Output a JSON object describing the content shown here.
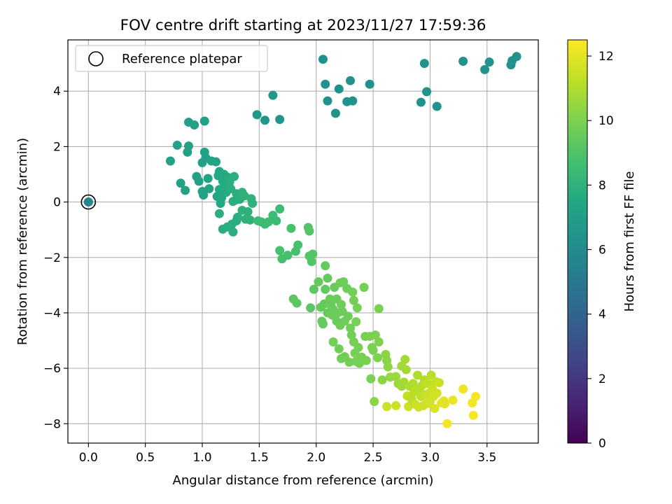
{
  "chart_data": {
    "type": "scatter",
    "title": "FOV centre drift starting at 2023/11/27 17:59:36",
    "xlabel": "Angular distance from reference (arcmin)",
    "ylabel": "Rotation from reference (arcmin)",
    "xlim": [
      -0.18,
      3.95
    ],
    "ylim": [
      -8.7,
      5.85
    ],
    "xticks": [
      0.0,
      0.5,
      1.0,
      1.5,
      2.0,
      2.5,
      3.0,
      3.5
    ],
    "xtick_labels": [
      "0.0",
      "0.5",
      "1.0",
      "1.5",
      "2.0",
      "2.5",
      "3.0",
      "3.5"
    ],
    "yticks": [
      -8,
      -6,
      -4,
      -2,
      0,
      2,
      4
    ],
    "ytick_labels": [
      "−8",
      "−6",
      "−4",
      "−2",
      "0",
      "2",
      "4"
    ],
    "grid": true,
    "legend": {
      "placement": "top-left",
      "entries": [
        "Reference platepar"
      ]
    },
    "reference_point": {
      "x": 0.0,
      "y": 0.0,
      "hours": 5.6
    },
    "colorbar": {
      "label": "Hours from first FF file",
      "range": [
        0,
        12.5
      ],
      "ticks": [
        0,
        2,
        4,
        6,
        8,
        10,
        12
      ],
      "tick_labels": [
        "0",
        "2",
        "4",
        "6",
        "8",
        "10",
        "12"
      ],
      "colormap": "viridis"
    },
    "series": [
      {
        "note_color": "viridis",
        "points": [
          [
            0.0,
            0.0,
            5.6
          ],
          [
            2.06,
            5.15,
            6.3
          ],
          [
            2.08,
            4.25,
            6.3
          ],
          [
            2.1,
            3.65,
            6.3
          ],
          [
            2.17,
            3.2,
            6.3
          ],
          [
            2.2,
            4.08,
            6.3
          ],
          [
            2.27,
            3.62,
            6.3
          ],
          [
            2.3,
            4.38,
            6.3
          ],
          [
            2.32,
            3.65,
            6.3
          ],
          [
            2.47,
            4.25,
            6.3
          ],
          [
            2.92,
            3.6,
            6.3
          ],
          [
            2.95,
            5.0,
            6.3
          ],
          [
            2.97,
            3.98,
            6.3
          ],
          [
            3.06,
            3.45,
            6.3
          ],
          [
            3.29,
            5.08,
            6.3
          ],
          [
            3.48,
            4.78,
            6.3
          ],
          [
            3.52,
            5.05,
            6.3
          ],
          [
            3.71,
            4.95,
            6.3
          ],
          [
            3.72,
            5.1,
            6.3
          ],
          [
            3.76,
            5.25,
            6.3
          ],
          [
            1.48,
            3.15,
            6.6
          ],
          [
            1.55,
            2.95,
            6.6
          ],
          [
            1.62,
            3.85,
            6.6
          ],
          [
            1.68,
            2.98,
            6.6
          ],
          [
            0.72,
            1.48,
            7.1
          ],
          [
            0.78,
            2.05,
            7.1
          ],
          [
            0.81,
            0.68,
            7.1
          ],
          [
            0.85,
            0.42,
            7.1
          ],
          [
            0.87,
            1.8,
            7.1
          ],
          [
            0.88,
            2.02,
            7.1
          ],
          [
            0.88,
            2.88,
            7.1
          ],
          [
            0.93,
            2.78,
            7.1
          ],
          [
            0.95,
            0.92,
            7.1
          ],
          [
            0.97,
            0.75,
            7.1
          ],
          [
            1.0,
            1.42,
            7.1
          ],
          [
            1.0,
            0.38,
            7.1
          ],
          [
            1.01,
            0.25,
            7.1
          ],
          [
            1.02,
            1.8,
            7.1
          ],
          [
            1.02,
            2.92,
            7.1
          ],
          [
            1.03,
            1.6,
            7.1
          ],
          [
            1.05,
            0.85,
            7.3
          ],
          [
            1.06,
            0.48,
            7.3
          ],
          [
            1.08,
            1.48,
            7.3
          ],
          [
            1.12,
            1.45,
            7.3
          ],
          [
            1.13,
            0.2,
            7.3
          ],
          [
            1.14,
            0.95,
            7.5
          ],
          [
            1.15,
            1.1,
            7.5
          ],
          [
            1.15,
            0.45,
            7.5
          ],
          [
            1.16,
            -0.05,
            7.5
          ],
          [
            1.17,
            0.15,
            7.5
          ],
          [
            1.18,
            0.75,
            7.6
          ],
          [
            1.19,
            1.0,
            7.6
          ],
          [
            1.2,
            0.55,
            7.6
          ],
          [
            1.21,
            0.35,
            7.6
          ],
          [
            1.22,
            0.9,
            7.6
          ],
          [
            1.23,
            0.6,
            7.6
          ],
          [
            1.24,
            0.72,
            7.8
          ],
          [
            1.25,
            0.48,
            7.8
          ],
          [
            1.27,
            0.02,
            7.8
          ],
          [
            1.28,
            0.92,
            7.8
          ],
          [
            1.3,
            0.3,
            7.8
          ],
          [
            1.3,
            0.08,
            7.8
          ],
          [
            1.31,
            -0.55,
            7.8
          ],
          [
            1.33,
            0.1,
            7.8
          ],
          [
            1.35,
            -0.3,
            8.0
          ],
          [
            1.35,
            0.35,
            8.0
          ],
          [
            1.37,
            0.22,
            8.0
          ],
          [
            1.38,
            -0.62,
            8.0
          ],
          [
            1.4,
            -0.35,
            8.0
          ],
          [
            1.42,
            -0.65,
            8.0
          ],
          [
            1.43,
            0.12,
            8.0
          ],
          [
            1.44,
            -0.05,
            8.0
          ],
          [
            1.15,
            -0.42,
            7.8
          ],
          [
            1.18,
            -0.98,
            7.8
          ],
          [
            1.22,
            -0.9,
            7.8
          ],
          [
            1.26,
            -0.8,
            7.8
          ],
          [
            1.27,
            -1.08,
            7.8
          ],
          [
            1.3,
            -0.68,
            7.8
          ],
          [
            1.49,
            -0.68,
            8.5
          ],
          [
            1.52,
            -0.72,
            8.5
          ],
          [
            1.55,
            -0.8,
            8.5
          ],
          [
            1.58,
            -0.72,
            8.5
          ],
          [
            1.62,
            -0.48,
            8.5
          ],
          [
            1.65,
            -0.68,
            8.5
          ],
          [
            1.68,
            -0.25,
            8.5
          ],
          [
            1.68,
            -1.75,
            8.8
          ],
          [
            1.7,
            -2.05,
            8.8
          ],
          [
            1.75,
            -1.92,
            8.8
          ],
          [
            1.78,
            -0.95,
            8.8
          ],
          [
            1.82,
            -1.78,
            8.8
          ],
          [
            1.84,
            -1.55,
            8.8
          ],
          [
            1.93,
            -0.92,
            9.1
          ],
          [
            1.94,
            -1.05,
            9.1
          ],
          [
            1.94,
            -1.95,
            9.1
          ],
          [
            1.96,
            -2.15,
            9.1
          ],
          [
            1.97,
            -1.88,
            9.1
          ],
          [
            1.98,
            -3.15,
            9.3
          ],
          [
            1.95,
            -3.82,
            9.3
          ],
          [
            1.8,
            -3.5,
            9.3
          ],
          [
            1.83,
            -3.65,
            9.3
          ],
          [
            2.02,
            -2.88,
            9.5
          ],
          [
            2.04,
            -3.8,
            9.5
          ],
          [
            2.05,
            -4.3,
            9.5
          ],
          [
            2.06,
            -4.4,
            9.5
          ],
          [
            2.07,
            -3.68,
            9.5
          ],
          [
            2.08,
            -3.15,
            9.5
          ],
          [
            2.08,
            -2.3,
            9.5
          ],
          [
            2.1,
            -4.0,
            9.5
          ],
          [
            2.1,
            -2.75,
            9.5
          ],
          [
            2.12,
            -3.5,
            9.6
          ],
          [
            2.13,
            -3.72,
            9.6
          ],
          [
            2.14,
            -4.08,
            9.6
          ],
          [
            2.15,
            -3.88,
            9.6
          ],
          [
            2.15,
            -5.05,
            9.8
          ],
          [
            2.16,
            -3.08,
            9.6
          ],
          [
            2.18,
            -3.5,
            9.6
          ],
          [
            2.18,
            -4.3,
            9.6
          ],
          [
            2.19,
            -4.0,
            9.7
          ],
          [
            2.2,
            -5.3,
            9.8
          ],
          [
            2.21,
            -2.92,
            9.7
          ],
          [
            2.21,
            -4.45,
            9.7
          ],
          [
            2.22,
            -3.7,
            9.7
          ],
          [
            2.22,
            -5.65,
            9.8
          ],
          [
            2.23,
            -3.95,
            9.7
          ],
          [
            2.24,
            -2.88,
            9.7
          ],
          [
            2.25,
            -4.3,
            9.7
          ],
          [
            2.25,
            -5.58,
            9.8
          ],
          [
            2.27,
            -3.12,
            9.7
          ],
          [
            2.28,
            -4.12,
            9.7
          ],
          [
            2.29,
            -5.78,
            9.8
          ],
          [
            2.3,
            -4.55,
            9.8
          ],
          [
            2.31,
            -4.8,
            9.8
          ],
          [
            2.32,
            -3.25,
            9.8
          ],
          [
            2.33,
            -5.05,
            9.9
          ],
          [
            2.33,
            -3.55,
            9.8
          ],
          [
            2.34,
            -5.45,
            9.9
          ],
          [
            2.35,
            -4.32,
            9.9
          ],
          [
            2.35,
            -5.75,
            9.9
          ],
          [
            2.36,
            -3.82,
            9.9
          ],
          [
            2.37,
            -5.25,
            9.9
          ],
          [
            2.38,
            -5.82,
            9.9
          ],
          [
            2.4,
            -5.6,
            9.9
          ],
          [
            2.42,
            -3.08,
            9.9
          ],
          [
            2.43,
            -4.85,
            9.9
          ],
          [
            2.44,
            -5.72,
            9.9
          ],
          [
            2.47,
            -4.85,
            10.0
          ],
          [
            2.48,
            -6.38,
            10.0
          ],
          [
            2.49,
            -5.25,
            10.0
          ],
          [
            2.5,
            -5.35,
            10.0
          ],
          [
            2.51,
            -7.2,
            10.3
          ],
          [
            2.52,
            -4.8,
            10.0
          ],
          [
            2.54,
            -5.62,
            10.1
          ],
          [
            2.55,
            -3.85,
            10.0
          ],
          [
            2.55,
            -5.05,
            10.1
          ],
          [
            2.58,
            -6.42,
            10.3
          ],
          [
            2.61,
            -5.5,
            10.3
          ],
          [
            2.62,
            -5.72,
            10.3
          ],
          [
            2.63,
            -5.95,
            10.4
          ],
          [
            2.65,
            -6.32,
            10.5
          ],
          [
            2.7,
            -6.3,
            10.6
          ],
          [
            2.72,
            -6.55,
            10.6
          ],
          [
            2.75,
            -5.92,
            10.7
          ],
          [
            2.75,
            -6.65,
            10.7
          ],
          [
            2.77,
            -6.5,
            10.8
          ],
          [
            2.78,
            -5.68,
            10.8
          ],
          [
            2.79,
            -6.05,
            10.8
          ],
          [
            2.62,
            -7.38,
            11.5
          ],
          [
            2.7,
            -7.35,
            11.5
          ],
          [
            2.8,
            -7.0,
            11.3
          ],
          [
            2.81,
            -7.38,
            11.5
          ],
          [
            2.82,
            -6.65,
            11.0
          ],
          [
            2.84,
            -7.12,
            11.2
          ],
          [
            2.85,
            -6.55,
            11.0
          ],
          [
            2.86,
            -6.85,
            11.2
          ],
          [
            2.87,
            -7.3,
            11.5
          ],
          [
            2.89,
            -6.25,
            11.0
          ],
          [
            2.9,
            -7.4,
            11.6
          ],
          [
            2.91,
            -6.72,
            11.2
          ],
          [
            2.92,
            -7.02,
            11.3
          ],
          [
            2.93,
            -6.62,
            11.2
          ],
          [
            2.94,
            -7.35,
            11.6
          ],
          [
            2.95,
            -6.42,
            11.1
          ],
          [
            2.96,
            -6.95,
            11.4
          ],
          [
            2.97,
            -7.28,
            11.6
          ],
          [
            2.98,
            -6.55,
            11.3
          ],
          [
            2.99,
            -6.9,
            11.5
          ],
          [
            3.0,
            -7.2,
            11.7
          ],
          [
            3.01,
            -6.25,
            11.2
          ],
          [
            3.02,
            -6.75,
            11.5
          ],
          [
            3.03,
            -7.02,
            11.7
          ],
          [
            3.04,
            -7.45,
            11.9
          ],
          [
            3.05,
            -6.48,
            11.4
          ],
          [
            3.06,
            -6.9,
            11.7
          ],
          [
            3.08,
            -6.52,
            11.5
          ],
          [
            3.1,
            -7.25,
            12.0
          ],
          [
            3.12,
            -7.18,
            12.0
          ],
          [
            3.13,
            -7.28,
            12.0
          ],
          [
            3.15,
            -8.0,
            12.3
          ],
          [
            3.2,
            -7.15,
            12.1
          ],
          [
            3.29,
            -6.75,
            12.2
          ],
          [
            3.37,
            -7.25,
            12.3
          ],
          [
            3.38,
            -7.7,
            12.4
          ],
          [
            3.4,
            -7.02,
            12.4
          ]
        ]
      }
    ]
  }
}
